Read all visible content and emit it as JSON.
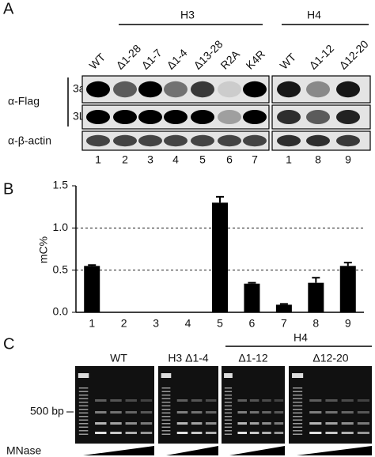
{
  "panel_a": {
    "label": "A",
    "groups": [
      "H3",
      "H4"
    ],
    "h3_lanes": [
      "WT",
      "Δ1-28",
      "Δ1-7",
      "Δ1-4",
      "Δ13-28",
      "R2A",
      "K4R"
    ],
    "h4_lanes": [
      "WT",
      "Δ1-12",
      "Δ12-20"
    ],
    "antibody": "α-Flag",
    "rows": [
      "3a",
      "3L"
    ],
    "loading": "α-β-actin",
    "h3_numbers": [
      "1",
      "2",
      "3",
      "4",
      "5",
      "6",
      "7"
    ],
    "h4_numbers": [
      "1",
      "8",
      "9"
    ]
  },
  "chart_data": {
    "type": "bar",
    "panel": "B",
    "y_label": "mC%",
    "categories": [
      "1",
      "2",
      "3",
      "4",
      "5",
      "6",
      "7",
      "8",
      "9"
    ],
    "values": [
      0.55,
      0,
      0,
      0,
      1.3,
      0.34,
      0.09,
      0.35,
      0.55
    ],
    "errors": [
      0.01,
      0,
      0,
      0,
      0.07,
      0.01,
      0.01,
      0.06,
      0.04
    ],
    "color": "#000000",
    "ylim": [
      0,
      1.5
    ],
    "yticks": [
      {
        "value": 0,
        "label": "0.0"
      },
      {
        "value": 0.5,
        "label": "0.5"
      },
      {
        "value": 1,
        "label": "1.0"
      },
      {
        "value": 1.5,
        "label": "1.5"
      }
    ],
    "grid": true
  },
  "panel_c": {
    "label": "C",
    "samples": [
      "WT",
      "H3 Δ1-4",
      "Δ1-12",
      "Δ12-20"
    ],
    "group": "H4",
    "marker": "500 bp",
    "enzyme": "MNase"
  }
}
